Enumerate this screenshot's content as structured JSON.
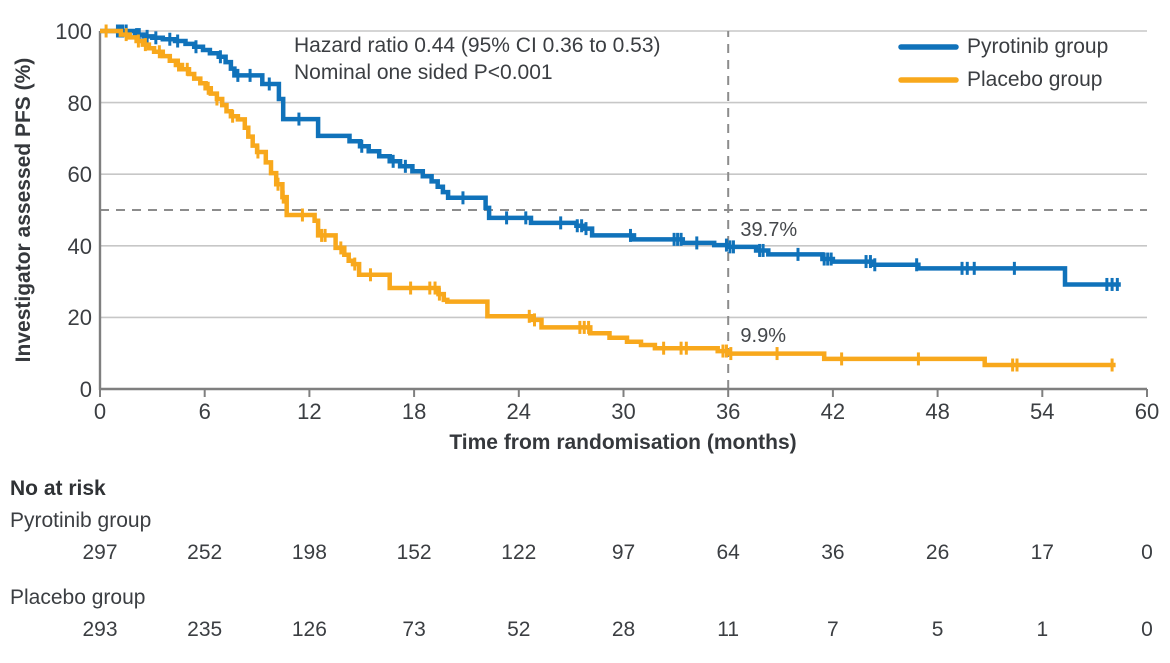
{
  "colors": {
    "pyrotinib": "#1072BA",
    "placebo": "#F8A81C",
    "grid": "#C7C7C7",
    "axis": "#7F7F7F",
    "dashed": "#8C8C8C",
    "text": "#3B3E42"
  },
  "chart_data": {
    "type": "line",
    "subtype": "kaplan-meier-step",
    "title": "",
    "xlabel": "Time from randomisation (months)",
    "ylabel": "Investigator assessed PFS (%)",
    "xlim": [
      0,
      60
    ],
    "ylim": [
      0,
      100
    ],
    "xticks": [
      0,
      6,
      12,
      18,
      24,
      30,
      36,
      42,
      48,
      54,
      60
    ],
    "yticks": [
      0,
      20,
      40,
      60,
      80,
      100
    ],
    "grid": "horizontal",
    "legend_position": "top-right",
    "annotation": {
      "line1": "Hazard ratio 0.44 (95% CI 0.36 to 0.53)",
      "line2": "Nominal one sided P<0.001"
    },
    "reference_lines": {
      "horizontal_dashed_pct": 50,
      "vertical_dashed_month": 36
    },
    "value_labels": [
      {
        "text": "39.7%",
        "month": 36.7,
        "pct": 47.5
      },
      {
        "text": "9.9%",
        "month": 36.7,
        "pct": 17.8
      }
    ],
    "series": [
      {
        "name": "Pyrotinib group",
        "color": "#1072BA",
        "steps": [
          [
            0,
            100
          ],
          [
            1.8,
            100
          ],
          [
            2.0,
            99.0
          ],
          [
            2.5,
            98.5
          ],
          [
            3.0,
            98.1
          ],
          [
            3.6,
            97.7
          ],
          [
            4.3,
            97.2
          ],
          [
            4.9,
            96.4
          ],
          [
            5.4,
            95.6
          ],
          [
            5.9,
            94.7
          ],
          [
            6.3,
            93.8
          ],
          [
            6.8,
            92.8
          ],
          [
            7.2,
            91.3
          ],
          [
            7.5,
            89.5
          ],
          [
            7.7,
            87.6
          ],
          [
            9.3,
            85.2
          ],
          [
            10.25,
            81.0
          ],
          [
            10.5,
            75.4
          ],
          [
            12.5,
            70.7
          ],
          [
            14.3,
            69.2
          ],
          [
            14.9,
            67.8
          ],
          [
            15.4,
            66.4
          ],
          [
            16.0,
            65.0
          ],
          [
            16.6,
            63.6
          ],
          [
            17.2,
            62.2
          ],
          [
            17.9,
            60.8
          ],
          [
            18.5,
            59.4
          ],
          [
            19.0,
            58.0
          ],
          [
            19.35,
            56.5
          ],
          [
            19.65,
            55.0
          ],
          [
            19.95,
            53.4
          ],
          [
            22.1,
            50.6
          ],
          [
            22.3,
            47.8
          ],
          [
            24.7,
            46.4
          ],
          [
            27.3,
            45.6
          ],
          [
            27.7,
            44.8
          ],
          [
            28.2,
            42.9
          ],
          [
            30.6,
            41.8
          ],
          [
            33.4,
            40.8
          ],
          [
            35.2,
            40.2
          ],
          [
            36.0,
            39.7
          ],
          [
            37.6,
            38.7
          ],
          [
            38.3,
            37.6
          ],
          [
            41.4,
            36.3
          ],
          [
            42.0,
            35.6
          ],
          [
            44.2,
            34.7
          ],
          [
            46.9,
            33.7
          ],
          [
            55.3,
            29.2
          ],
          [
            58.5,
            29.2
          ]
        ],
        "censor_times": [
          1.0,
          1.15,
          1.3,
          1.5,
          2.1,
          2.25,
          2.7,
          3.2,
          4.0,
          4.45,
          5.5,
          6.9,
          7.9,
          8.6,
          9.7,
          11.4,
          15.0,
          16.8,
          17.5,
          20.8,
          23.3,
          24.4,
          26.4,
          27.35,
          27.6,
          27.85,
          30.4,
          32.9,
          33.1,
          33.3,
          34.2,
          35.9,
          36.1,
          36.3,
          37.8,
          38.0,
          40.0,
          41.5,
          41.7,
          41.9,
          43.9,
          44.15,
          44.4,
          46.8,
          49.4,
          49.7,
          50.1,
          52.4,
          57.7,
          58.0,
          58.3
        ]
      },
      {
        "name": "Placebo group",
        "color": "#F8A81C",
        "steps": [
          [
            0,
            100
          ],
          [
            1.2,
            99.0
          ],
          [
            1.7,
            98.2
          ],
          [
            2.1,
            97.2
          ],
          [
            2.45,
            96.2
          ],
          [
            2.8,
            95.2
          ],
          [
            3.1,
            94.2
          ],
          [
            3.6,
            93.0
          ],
          [
            4.0,
            91.7
          ],
          [
            4.35,
            90.5
          ],
          [
            4.7,
            89.3
          ],
          [
            5.1,
            88.0
          ],
          [
            5.4,
            86.7
          ],
          [
            5.75,
            85.4
          ],
          [
            6.05,
            84.0
          ],
          [
            6.35,
            82.5
          ],
          [
            6.7,
            81.0
          ],
          [
            7.0,
            79.3
          ],
          [
            7.25,
            77.6
          ],
          [
            7.5,
            76.2
          ],
          [
            7.9,
            75.3
          ],
          [
            8.3,
            73.0
          ],
          [
            8.5,
            70.5
          ],
          [
            8.75,
            68.0
          ],
          [
            9.0,
            66.2
          ],
          [
            9.5,
            63.3
          ],
          [
            9.8,
            60.3
          ],
          [
            10.1,
            57.2
          ],
          [
            10.45,
            53.6
          ],
          [
            10.7,
            48.6
          ],
          [
            12.3,
            47.0
          ],
          [
            12.5,
            42.9
          ],
          [
            13.5,
            39.4
          ],
          [
            14.0,
            37.5
          ],
          [
            14.25,
            35.8
          ],
          [
            14.5,
            34.9
          ],
          [
            14.85,
            31.9
          ],
          [
            16.6,
            28.2
          ],
          [
            19.4,
            26.5
          ],
          [
            19.7,
            24.9
          ],
          [
            19.9,
            24.4
          ],
          [
            22.2,
            20.3
          ],
          [
            24.8,
            19.3
          ],
          [
            25.3,
            17.2
          ],
          [
            28.1,
            15.6
          ],
          [
            29.2,
            14.3
          ],
          [
            30.2,
            13.2
          ],
          [
            31.0,
            12.3
          ],
          [
            31.8,
            11.4
          ],
          [
            35.4,
            10.6
          ],
          [
            36.0,
            9.9
          ],
          [
            41.5,
            8.4
          ],
          [
            50.7,
            6.7
          ],
          [
            58.2,
            6.7
          ]
        ],
        "censor_times": [
          0.35,
          1.5,
          2.2,
          2.6,
          3.4,
          4.5,
          5.0,
          6.2,
          6.7,
          7.6,
          9.05,
          10.2,
          10.5,
          11.6,
          12.7,
          12.9,
          13.8,
          14.6,
          15.5,
          17.8,
          18.9,
          19.2,
          19.45,
          24.6,
          24.9,
          27.5,
          27.75,
          28.0,
          32.3,
          33.3,
          33.6,
          35.7,
          35.9,
          36.15,
          38.8,
          42.5,
          46.9,
          52.3,
          52.55,
          58.0
        ]
      }
    ]
  },
  "risk_table": {
    "title": "No at risk",
    "times": [
      0,
      6,
      12,
      18,
      24,
      30,
      36,
      42,
      48,
      54,
      60
    ],
    "rows": [
      {
        "label": "Pyrotinib group",
        "counts": [
          "297",
          "252",
          "198",
          "152",
          "122",
          "97",
          "64",
          "36",
          "26",
          "17",
          "0"
        ]
      },
      {
        "label": "Placebo group",
        "counts": [
          "293",
          "235",
          "126",
          "73",
          "52",
          "28",
          "11",
          "7",
          "5",
          "1",
          "0"
        ]
      }
    ]
  }
}
